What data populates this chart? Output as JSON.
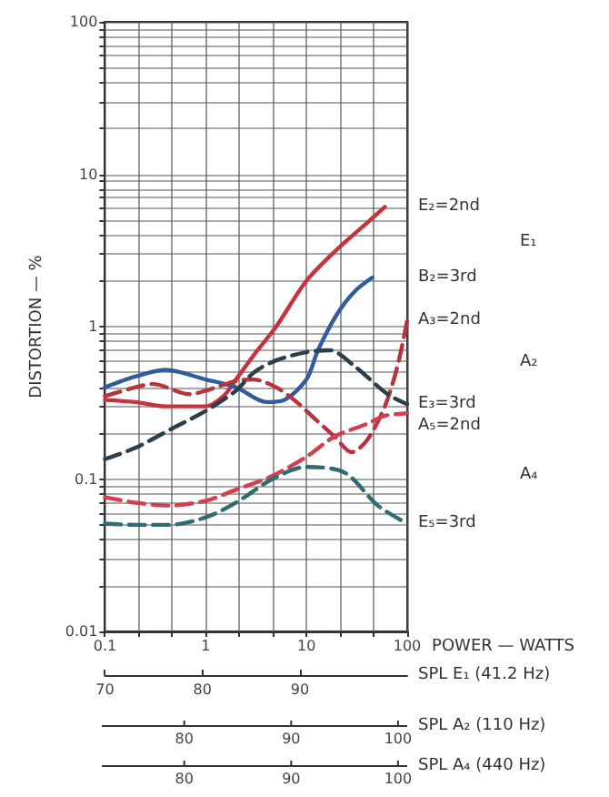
{
  "chart_data": [
    {
      "type": "line",
      "ylabel": "DISTORTION — %",
      "xlabel": "POWER — WATTS",
      "log": "xy",
      "grid": true,
      "legend": false,
      "marker": "none",
      "xlim": [
        0.1,
        100
      ],
      "ylim": [
        0.01,
        100
      ],
      "xticks": [
        0.1,
        {
          "value": 0.215,
          "label": null
        },
        {
          "value": 0.464,
          "label": null
        },
        1,
        {
          "value": 2.15,
          "label": null
        },
        {
          "value": 4.64,
          "label": null
        },
        10,
        {
          "value": 21.5,
          "label": null
        },
        {
          "value": 46.4,
          "label": null
        },
        100
      ],
      "yticks": [
        0.01,
        {
          "value": 0.02,
          "label": null
        },
        {
          "value": 0.03,
          "label": null
        },
        {
          "value": 0.04,
          "label": null
        },
        {
          "value": 0.05,
          "label": null
        },
        {
          "value": 0.06,
          "label": null
        },
        {
          "value": 0.07,
          "label": null
        },
        {
          "value": 0.08,
          "label": null
        },
        {
          "value": 0.09,
          "label": null
        },
        0.1,
        {
          "value": 0.2,
          "label": null
        },
        {
          "value": 0.3,
          "label": null
        },
        {
          "value": 0.4,
          "label": null
        },
        {
          "value": 0.5,
          "label": null
        },
        {
          "value": 0.6,
          "label": null
        },
        {
          "value": 0.7,
          "label": null
        },
        {
          "value": 0.8,
          "label": null
        },
        {
          "value": 0.9,
          "label": null
        },
        1,
        {
          "value": 2,
          "label": null
        },
        {
          "value": 3,
          "label": null
        },
        {
          "value": 4,
          "label": null
        },
        {
          "value": 5,
          "label": null
        },
        {
          "value": 6,
          "label": null
        },
        {
          "value": 7,
          "label": null
        },
        {
          "value": 8,
          "label": null
        },
        {
          "value": 9,
          "label": null
        },
        10,
        {
          "value": 20,
          "label": null
        },
        {
          "value": 30,
          "label": null
        },
        {
          "value": 40,
          "label": null
        },
        {
          "value": 50,
          "label": null
        },
        {
          "value": 60,
          "label": null
        },
        {
          "value": 70,
          "label": null
        },
        {
          "value": 80,
          "label": null
        },
        {
          "value": 90,
          "label": null
        },
        100
      ],
      "annotations": [
        "E₁",
        "A₂",
        "A₄"
      ],
      "x2label": "SPL E₁ (41.2 Hz)",
      "x2lim": [
        70,
        101
      ],
      "x2ticks": [
        70,
        80,
        90
      ],
      "series": [
        {
          "name": "E₂=2nd",
          "color": "#c8323f",
          "line_style": "solid",
          "x": [
            0.1,
            0.2,
            0.4,
            0.7,
            1,
            1.5,
            2,
            3,
            5,
            10,
            20,
            40,
            60
          ],
          "values": [
            0.33,
            0.32,
            0.3,
            0.3,
            0.3,
            0.35,
            0.45,
            0.65,
            1.0,
            2.0,
            3.2,
            4.8,
            6.1
          ]
        },
        {
          "name": "B₂=3rd",
          "color": "#2e5c9e",
          "line_style": "solid",
          "x": [
            0.1,
            0.2,
            0.4,
            1,
            2,
            4,
            6,
            10,
            13,
            20,
            30,
            45
          ],
          "values": [
            0.4,
            0.47,
            0.52,
            0.45,
            0.4,
            0.32,
            0.33,
            0.45,
            0.7,
            1.2,
            1.7,
            2.1
          ]
        },
        {
          "name": "A₃=2nd",
          "color": "#b8333e",
          "line_style": "dashed",
          "x": [
            0.1,
            0.2,
            0.3,
            0.7,
            1,
            2,
            3,
            5,
            8,
            12,
            19,
            28,
            40,
            60,
            80,
            100
          ],
          "values": [
            0.35,
            0.4,
            0.42,
            0.36,
            0.38,
            0.44,
            0.45,
            0.4,
            0.32,
            0.25,
            0.19,
            0.15,
            0.18,
            0.3,
            0.55,
            1.1
          ]
        },
        {
          "name": "E₃=3rd",
          "color": "#2b3f4a",
          "line_style": "dashed",
          "x": [
            0.1,
            0.2,
            0.5,
            1,
            2,
            3,
            5,
            10,
            17,
            30,
            64,
            100
          ],
          "values": [
            0.135,
            0.16,
            0.22,
            0.28,
            0.38,
            0.5,
            0.6,
            0.68,
            0.7,
            0.55,
            0.36,
            0.31
          ]
        },
        {
          "name": "A₅=2nd",
          "color": "#d0404f",
          "line_style": "dashed",
          "x": [
            0.1,
            0.2,
            0.43,
            1,
            2,
            4.6,
            10,
            19,
            40,
            60,
            100
          ],
          "values": [
            0.076,
            0.07,
            0.067,
            0.072,
            0.085,
            0.105,
            0.14,
            0.19,
            0.23,
            0.26,
            0.27
          ]
        },
        {
          "name": "E₅=3rd",
          "color": "#2f6b70",
          "line_style": "dashed",
          "x": [
            0.1,
            0.2,
            0.43,
            1,
            2,
            4.6,
            10,
            24,
            51,
            100
          ],
          "values": [
            0.051,
            0.05,
            0.05,
            0.056,
            0.07,
            0.1,
            0.12,
            0.11,
            0.067,
            0.051
          ]
        }
      ]
    },
    {
      "type": "other",
      "xlabel": "SPL A₂ (110 Hz)",
      "annotations": [
        "80",
        "90",
        "100"
      ]
    },
    {
      "type": "other",
      "xlabel": "SPL A₄ (440 Hz)",
      "annotations": [
        "80",
        "90",
        "100"
      ]
    }
  ]
}
